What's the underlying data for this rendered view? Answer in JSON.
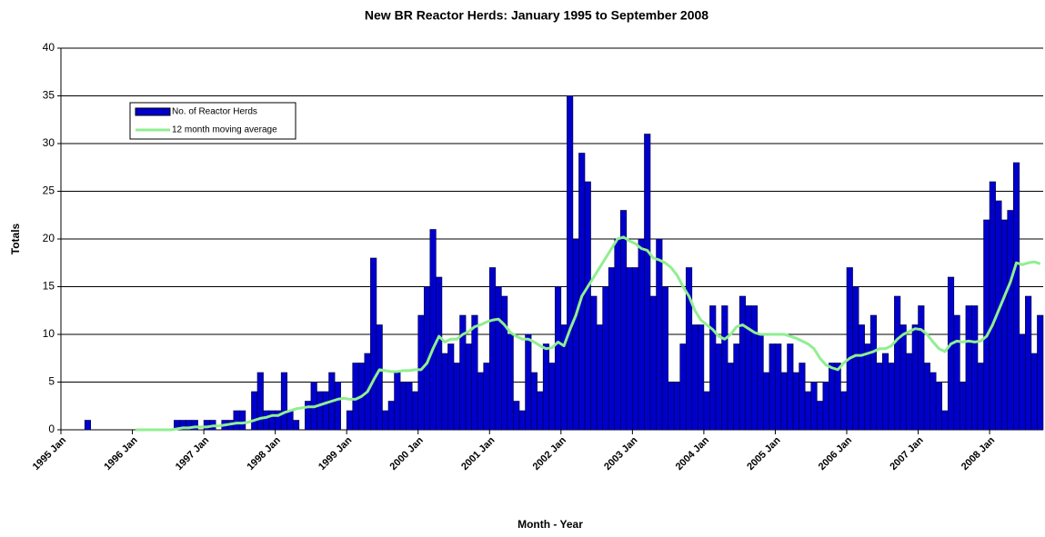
{
  "chart_data": {
    "type": "bar",
    "title": "New BR Reactor Herds: January 1995 to September 2008",
    "x_label": "Month - Year",
    "y_label": "Totals",
    "categories": [
      "1995 Jan",
      null,
      null,
      null,
      null,
      null,
      null,
      null,
      null,
      null,
      null,
      null,
      "1996 Jan",
      null,
      null,
      null,
      null,
      null,
      null,
      null,
      null,
      null,
      null,
      null,
      "1997 Jan",
      null,
      null,
      null,
      null,
      null,
      null,
      null,
      null,
      null,
      null,
      null,
      "1998 Jan",
      null,
      null,
      null,
      null,
      null,
      null,
      null,
      null,
      null,
      null,
      null,
      "1999 Jan",
      null,
      null,
      null,
      null,
      null,
      null,
      null,
      null,
      null,
      null,
      null,
      "2000 Jan",
      null,
      null,
      null,
      null,
      null,
      null,
      null,
      null,
      null,
      null,
      null,
      "2001 Jan",
      null,
      null,
      null,
      null,
      null,
      null,
      null,
      null,
      null,
      null,
      null,
      "2002 Jan",
      null,
      null,
      null,
      null,
      null,
      null,
      null,
      null,
      null,
      null,
      null,
      "2003 Jan",
      null,
      null,
      null,
      null,
      null,
      null,
      null,
      null,
      null,
      null,
      null,
      "2004 Jan",
      null,
      null,
      null,
      null,
      null,
      null,
      null,
      null,
      null,
      null,
      null,
      "2005 Jan",
      null,
      null,
      null,
      null,
      null,
      null,
      null,
      null,
      null,
      null,
      null,
      "2006 Jan",
      null,
      null,
      null,
      null,
      null,
      null,
      null,
      null,
      null,
      null,
      null,
      "2007 Jan",
      null,
      null,
      null,
      null,
      null,
      null,
      null,
      null,
      null,
      null,
      null,
      "2008 Jan",
      null,
      null,
      null,
      null,
      null,
      null,
      null,
      null
    ],
    "series": [
      {
        "name": "No. of Reactor Herds",
        "type": "bar",
        "color": "#0000cc",
        "values": [
          0,
          0,
          0,
          0,
          1,
          0,
          0,
          0,
          0,
          0,
          0,
          0,
          0,
          0,
          0,
          0,
          0,
          0,
          0,
          1,
          1,
          1,
          1,
          0,
          1,
          1,
          0,
          1,
          1,
          2,
          2,
          0,
          4,
          6,
          2,
          2,
          2,
          6,
          2,
          1,
          0,
          3,
          5,
          4,
          4,
          6,
          5,
          0,
          2,
          7,
          7,
          8,
          18,
          11,
          2,
          3,
          6,
          5,
          5,
          4,
          12,
          15,
          21,
          16,
          8,
          9,
          7,
          12,
          9,
          12,
          6,
          7,
          17,
          15,
          14,
          10,
          3,
          2,
          10,
          6,
          4,
          9,
          7,
          15,
          11,
          35,
          20,
          29,
          26,
          14,
          11,
          15,
          17,
          20,
          23,
          17,
          17,
          20,
          31,
          14,
          20,
          15,
          5,
          5,
          9,
          17,
          11,
          11,
          4,
          13,
          9,
          13,
          7,
          9,
          14,
          13,
          13,
          10,
          6,
          9,
          9,
          6,
          9,
          6,
          7,
          4,
          5,
          3,
          5,
          7,
          7,
          4,
          17,
          15,
          11,
          9,
          12,
          7,
          8,
          7,
          14,
          11,
          8,
          11,
          13,
          7,
          6,
          5,
          2,
          16,
          12,
          5,
          13,
          13,
          7,
          22,
          26,
          24,
          22,
          23,
          28,
          10,
          14,
          8,
          12
        ]
      },
      {
        "name": "12 month moving average",
        "type": "line",
        "color": "#90ee90",
        "values": [
          null,
          null,
          null,
          null,
          null,
          null,
          null,
          null,
          null,
          null,
          null,
          null,
          0,
          0,
          0,
          0,
          0,
          0,
          0,
          0.1,
          0.2,
          0.2,
          0.3,
          0.3,
          0.3,
          0.4,
          0.4,
          0.5,
          0.6,
          0.7,
          0.7,
          0.8,
          1,
          1.2,
          1.3,
          1.5,
          1.5,
          1.8,
          2,
          2.2,
          2.3,
          2.4,
          2.4,
          2.6,
          2.8,
          3,
          3.2,
          3.3,
          3.2,
          3.2,
          3.5,
          4,
          5.2,
          6.3,
          6.2,
          6.1,
          6.1,
          6.2,
          6.2,
          6.3,
          6.3,
          7,
          8.5,
          9.8,
          9.2,
          9.5,
          9.5,
          10,
          10.3,
          10.8,
          11,
          11.3,
          11.5,
          11.6,
          11,
          10.2,
          9.8,
          9.5,
          9.5,
          9.2,
          8.8,
          8.5,
          8.6,
          9.2,
          8.8,
          10.5,
          12,
          14,
          15,
          16,
          17,
          18,
          19,
          20,
          20.2,
          19.8,
          19.5,
          19,
          18.8,
          18,
          17.8,
          17.5,
          17,
          16.2,
          15,
          14,
          12.5,
          11.5,
          11,
          10.5,
          9.8,
          9.5,
          10,
          10.8,
          11,
          10.6,
          10.2,
          10,
          10,
          10,
          10,
          10,
          9.8,
          9.6,
          9.3,
          9,
          8.5,
          7.5,
          6.8,
          6.5,
          6.3,
          7,
          7.5,
          7.8,
          7.8,
          8,
          8.2,
          8.5,
          8.5,
          8.8,
          9.5,
          10,
          10.3,
          10.6,
          10.5,
          10,
          9.2,
          8.5,
          8.2,
          9,
          9.3,
          9.2,
          9.3,
          9.2,
          9.3,
          9.8,
          11,
          12.5,
          14,
          15.5,
          17.5,
          17.3,
          17.5,
          17.6,
          17.4
        ]
      }
    ],
    "ylim": [
      0,
      40
    ],
    "yticks": [
      0,
      5,
      10,
      15,
      20,
      25,
      30,
      35,
      40
    ],
    "grid": true,
    "legend": "upper left"
  }
}
